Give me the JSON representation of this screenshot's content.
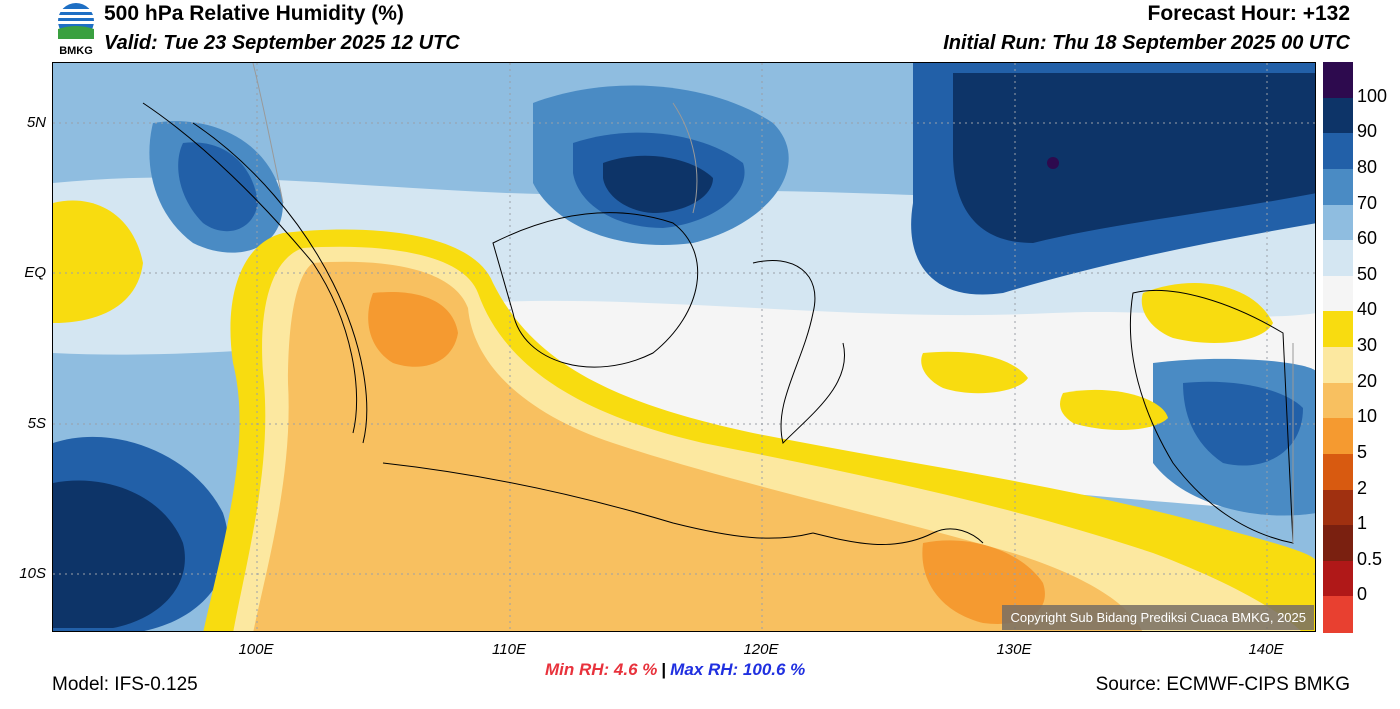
{
  "header": {
    "title": "500 hPa Relative Humidity (%)",
    "valid": "Valid: Tue 23 September 2025 12 UTC",
    "forecast_hour": "Forecast Hour: +132",
    "initial_run": "Initial Run: Thu 18 September 2025 00 UTC"
  },
  "logo": {
    "text": "BMKG",
    "icon": "bmkg-logo"
  },
  "map": {
    "lat_labels": [
      "5N",
      "EQ",
      "5S",
      "10S"
    ],
    "lon_labels": [
      "100E",
      "110E",
      "120E",
      "130E",
      "140E"
    ],
    "copyright": "Copyright Sub Bidang Prediksi Cuaca BMKG, 2025"
  },
  "colorbar": {
    "labels": [
      "100",
      "90",
      "80",
      "70",
      "60",
      "50",
      "40",
      "30",
      "20",
      "10",
      "5",
      "2",
      "1",
      "0.5",
      "0"
    ],
    "colors": [
      "#2d0a4e",
      "#0d3468",
      "#2260a8",
      "#4a8bc4",
      "#8fbde0",
      "#d4e6f2",
      "#f5f5f5",
      "#f8dc10",
      "#fce8a0",
      "#f8c060",
      "#f59a30",
      "#d85a10",
      "#a03010",
      "#7a2010",
      "#b01818",
      "#e84030"
    ]
  },
  "stats": {
    "min": "Min RH:   4.6 %",
    "max": "Max RH: 100.6 %"
  },
  "footer": {
    "model": "Model: IFS-0.125",
    "source": "Source: ECMWF-CIPS BMKG"
  }
}
